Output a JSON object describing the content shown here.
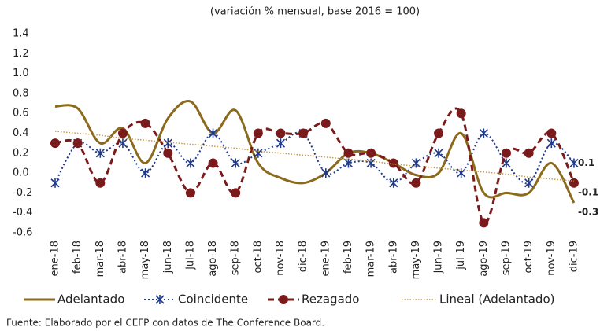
{
  "chart_data": {
    "type": "line",
    "title": "(variación % mensual, base 2016 = 100)",
    "source": "Fuente: Elaborado por el CEFP con datos de The Conference Board.",
    "categories": [
      "ene-18",
      "feb-18",
      "mar-18",
      "abr-18",
      "may-18",
      "jun-18",
      "jul-18",
      "ago-18",
      "sep-18",
      "oct-18",
      "nov-18",
      "dic-18",
      "ene-19",
      "feb-19",
      "mar-19",
      "abr-19",
      "may-19",
      "jun-19",
      "jul-19",
      "ago-19",
      "sep-19",
      "oct-19",
      "nov-19",
      "dic-19"
    ],
    "ylim": [
      -0.6,
      1.4
    ],
    "yticks": [
      -0.6,
      -0.4,
      -0.2,
      {
        "value": 0,
        "label": "0.0"
      },
      0.2,
      0.4,
      0.6,
      0.8,
      {
        "value": 1,
        "label": "1.0"
      },
      1.2,
      1.4
    ],
    "grid": false,
    "legend": "bottom",
    "series": [
      {
        "name": "Adelantado",
        "color": "#8c6a1c",
        "dash": "solid",
        "marker": "none",
        "smooth": true,
        "end_label": true,
        "values": [
          0.67,
          0.65,
          0.3,
          0.45,
          0.1,
          0.55,
          0.72,
          0.4,
          0.63,
          0.1,
          -0.05,
          -0.1,
          0.0,
          0.2,
          0.2,
          0.1,
          -0.02,
          0.0,
          0.4,
          -0.2,
          -0.2,
          -0.2,
          0.1,
          -0.3
        ]
      },
      {
        "name": "Coincidente",
        "color": "#1f3a8a",
        "dash": "dotted",
        "marker": "star",
        "smooth": true,
        "end_label": true,
        "values": [
          -0.1,
          0.3,
          0.2,
          0.3,
          0.0,
          0.3,
          0.1,
          0.4,
          0.1,
          0.2,
          0.3,
          0.4,
          0.0,
          0.1,
          0.1,
          -0.1,
          0.1,
          0.2,
          0.0,
          0.4,
          0.1,
          -0.1,
          0.3,
          0.1
        ]
      },
      {
        "name": "Rezagado",
        "color": "#7a1a1a",
        "dash": "dashed",
        "marker": "circle",
        "smooth": true,
        "end_label": true,
        "values": [
          0.3,
          0.3,
          -0.1,
          0.4,
          0.5,
          0.2,
          -0.2,
          0.1,
          -0.2,
          0.4,
          0.4,
          0.4,
          0.5,
          0.2,
          0.2,
          0.1,
          -0.1,
          0.4,
          0.6,
          -0.5,
          0.2,
          0.2,
          0.4,
          -0.1
        ]
      },
      {
        "name": "Lineal (Adelantado)",
        "color": "#c49a50",
        "dash": "fine",
        "marker": "none",
        "smooth": false,
        "end_label": false,
        "values": [
          0.42,
          0.4,
          0.38,
          0.35,
          0.33,
          0.31,
          0.29,
          0.27,
          0.25,
          0.22,
          0.2,
          0.18,
          0.16,
          0.14,
          0.12,
          0.09,
          0.07,
          0.05,
          0.03,
          0.01,
          -0.01,
          -0.04,
          -0.06,
          -0.08
        ]
      }
    ]
  }
}
